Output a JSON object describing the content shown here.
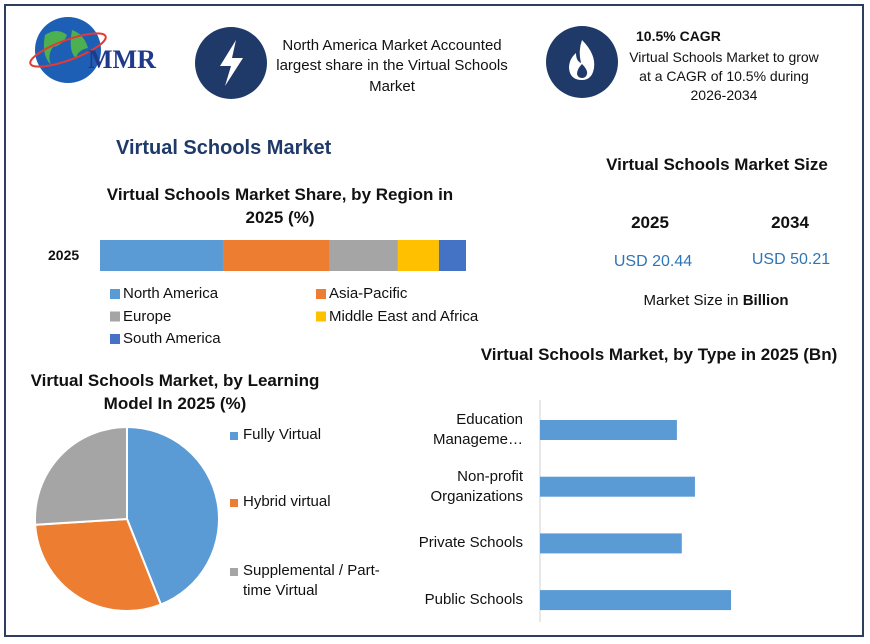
{
  "header": {
    "logo": "MMR",
    "highlight": "North America Market Accounted largest share in the Virtual Schools Market",
    "cagr_title": "10.5% CAGR",
    "cagr_text": "Virtual Schools Market to grow at a CAGR of 10.5% during 2026-2034"
  },
  "title": "Virtual Schools Market",
  "market_size": {
    "title": "Virtual Schools Market Size",
    "years": [
      "2025",
      "2034"
    ],
    "values": [
      "USD 20.44",
      "USD 50.21"
    ],
    "note": "Market Size in",
    "unit": "Billion"
  },
  "chart_data": [
    {
      "type": "stacked_bar",
      "title": "Virtual Schools Market Share, by Region in 2025 (%)",
      "categories": [
        "2025"
      ],
      "series": [
        {
          "name": "North America",
          "color": "#5b9bd5",
          "values": [
            33.6
          ]
        },
        {
          "name": "Asia-Pacific",
          "color": "#ed7d31",
          "values": [
            29.2
          ]
        },
        {
          "name": "Europe",
          "color": "#a5a5a5",
          "values": [
            18.6
          ]
        },
        {
          "name": "Middle East and Africa",
          "color": "#ffc000",
          "values": [
            11.2
          ]
        },
        {
          "name": "South America",
          "color": "#4472c4",
          "values": [
            7.4
          ]
        }
      ]
    },
    {
      "type": "pie",
      "title": "Virtual Schools Market, by Learning Model In 2025 (%)",
      "categories": [
        "Fully Virtual",
        "Hybrid virtual",
        "Supplemental / Part-time Virtual"
      ],
      "values": [
        44,
        30,
        26
      ],
      "colors": [
        "#5b9bd5",
        "#ed7d31",
        "#a5a5a5"
      ]
    },
    {
      "type": "hbar",
      "title": "Virtual Schools Market, by Type in 2025 (Bn)",
      "categories": [
        "Education Manageme…",
        "Non-profit Organizations",
        "Private Schools",
        "Public Schools"
      ],
      "values": [
        4.48,
        5.07,
        4.64,
        6.25
      ],
      "color": "#5b9bd5"
    }
  ]
}
